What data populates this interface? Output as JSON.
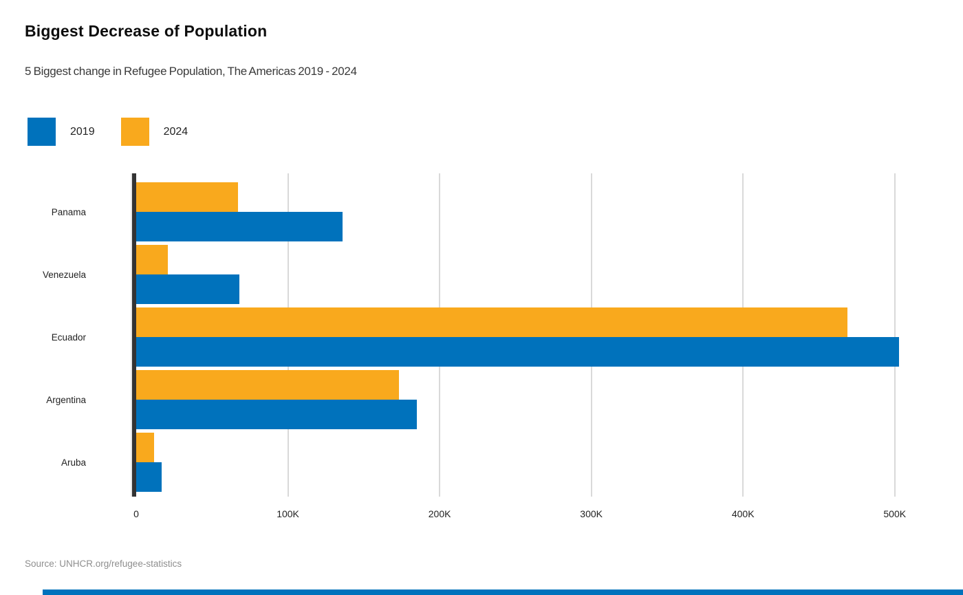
{
  "header": {
    "title": "Biggest Decrease of Population",
    "subtitle": "5 Biggest change in Refugee Population, The Americas 2019 - 2024"
  },
  "legend": [
    {
      "label": "2019",
      "color": "#0072bc"
    },
    {
      "label": "2024",
      "color": "#f9a91d"
    }
  ],
  "chart_data": {
    "type": "bar",
    "orientation": "horizontal",
    "title": "Biggest Decrease of Population",
    "subtitle": "5 Biggest change in Refugee Population, The Americas 2019 - 2024",
    "categories": [
      "Panama",
      "Venezuela",
      "Ecuador",
      "Argentina",
      "Aruba"
    ],
    "series": [
      {
        "name": "2019",
        "color": "#0072bc",
        "values": [
          136000,
          68000,
          503000,
          185000,
          17000
        ]
      },
      {
        "name": "2024",
        "color": "#f9a91d",
        "values": [
          67000,
          21000,
          469000,
          173000,
          12000
        ]
      }
    ],
    "bar_order_in_group": [
      "2024",
      "2019"
    ],
    "x_ticks": [
      {
        "value": 0,
        "label": "0"
      },
      {
        "value": 100000,
        "label": "100K"
      },
      {
        "value": 200000,
        "label": "200K"
      },
      {
        "value": 300000,
        "label": "300K"
      },
      {
        "value": 400000,
        "label": "400K"
      },
      {
        "value": 500000,
        "label": "500K"
      }
    ],
    "xmax": 545000,
    "grid": true,
    "legend_position": "top-left",
    "xlabel": "",
    "ylabel": ""
  },
  "source": {
    "text": "Source: UNHCR.org/refugee-statistics"
  },
  "colors": {
    "series_2019": "#0072bc",
    "series_2024": "#f9a91d",
    "axis_spine": "#333333",
    "gridline": "#d9d9d9",
    "footer_bar": "#0072bc"
  }
}
